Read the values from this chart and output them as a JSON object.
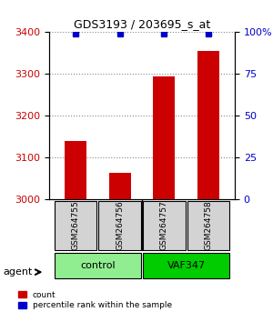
{
  "title": "GDS3193 / 203695_s_at",
  "samples": [
    "GSM264755",
    "GSM264756",
    "GSM264757",
    "GSM264758"
  ],
  "counts": [
    3140,
    3065,
    3295,
    3355
  ],
  "percentile_ranks": [
    99,
    99,
    99,
    99
  ],
  "ylim_left": [
    3000,
    3400
  ],
  "ylim_right": [
    0,
    100
  ],
  "yticks_left": [
    3000,
    3100,
    3200,
    3300,
    3400
  ],
  "yticks_right": [
    0,
    25,
    50,
    75,
    100
  ],
  "ytick_labels_right": [
    "0",
    "25",
    "50",
    "75",
    "100%"
  ],
  "bar_color": "#cc0000",
  "dot_color": "#0000cc",
  "groups": [
    {
      "label": "control",
      "indices": [
        0,
        1
      ],
      "color": "#90ee90"
    },
    {
      "label": "VAF347",
      "indices": [
        2,
        3
      ],
      "color": "#00cc00"
    }
  ],
  "group_label": "agent",
  "legend_count_label": "count",
  "legend_pct_label": "percentile rank within the sample",
  "bg_color": "#ffffff",
  "plot_bg_color": "#ffffff",
  "sample_box_color": "#d3d3d3",
  "grid_color": "#888888",
  "left_tick_color": "#cc0000",
  "right_tick_color": "#0000cc"
}
